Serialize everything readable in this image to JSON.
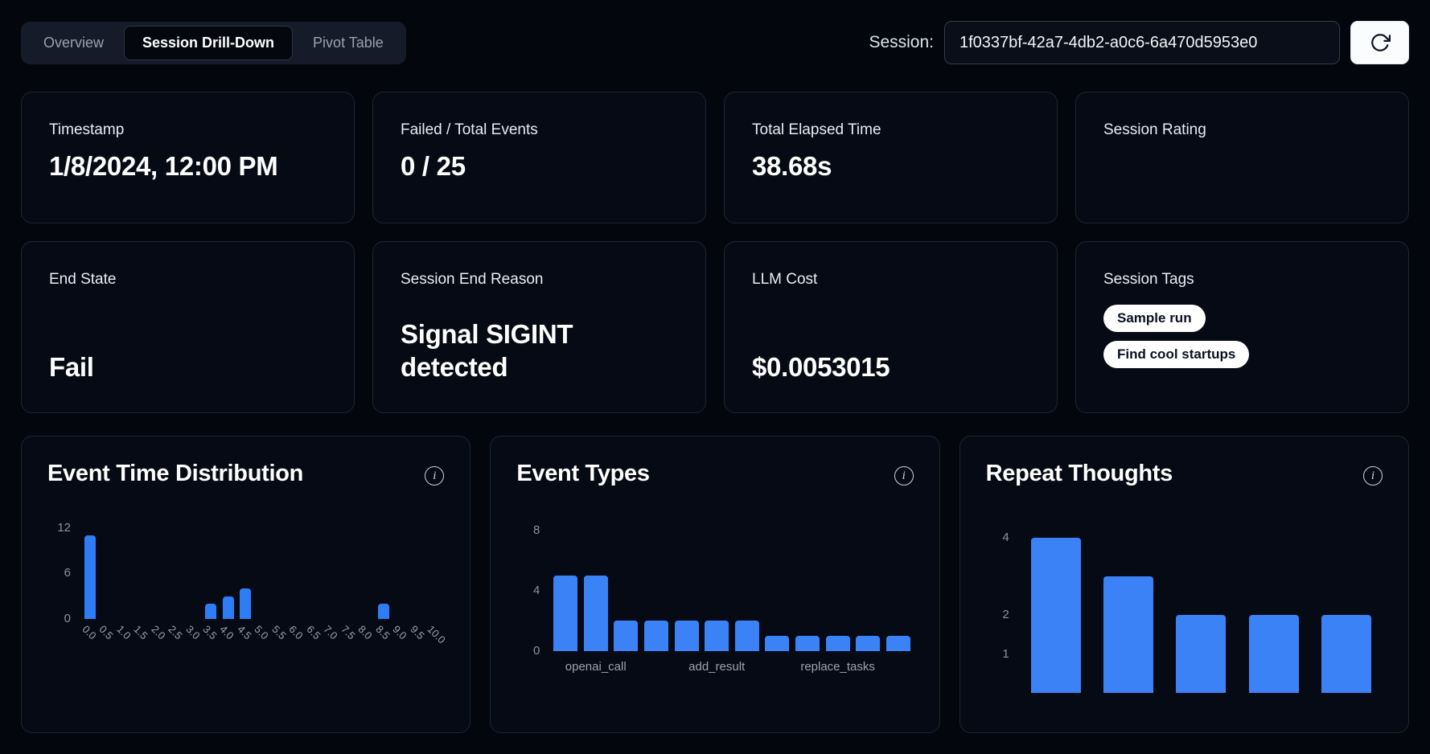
{
  "theme": {
    "background": "#04060d",
    "card_background": "#060a14",
    "card_border": "#1c2535",
    "accent_blue": "#3b82f6",
    "pill_background": "#ffffff"
  },
  "icons": {
    "info": "i",
    "refresh": "refresh-arrow"
  },
  "tabs": [
    {
      "label": "Overview",
      "active": false
    },
    {
      "label": "Session Drill-Down",
      "active": true
    },
    {
      "label": "Pivot Table",
      "active": false
    }
  ],
  "session_picker": {
    "label": "Session:",
    "value": "1f0337bf-42a7-4db2-a0c6-6a470d5953e0"
  },
  "stats": [
    {
      "title": "Timestamp",
      "value": "1/8/2024, 12:00 PM"
    },
    {
      "title": "Failed / Total Events",
      "value": "0 / 25"
    },
    {
      "title": "Total Elapsed Time",
      "value": "38.68s"
    },
    {
      "title": "Session Rating",
      "value": ""
    },
    {
      "title": "End State",
      "value": "Fail"
    },
    {
      "title": "Session End Reason",
      "value": "Signal SIGINT detected"
    },
    {
      "title": "LLM Cost",
      "value": "$0.0053015"
    },
    {
      "title": "Session Tags",
      "tags": [
        "Sample run",
        "Find cool startups"
      ]
    }
  ],
  "chart_data": [
    {
      "type": "bar",
      "title": "Event Time Distribution",
      "categories": [
        "0.0",
        "0.5",
        "1.0",
        "1.5",
        "2.0",
        "2.5",
        "3.0",
        "3.5",
        "4.0",
        "4.5",
        "5.0",
        "5.5",
        "6.0",
        "6.5",
        "7.0",
        "7.5",
        "8.0",
        "8.5",
        "9.0",
        "9.5",
        "10.0"
      ],
      "values": [
        11,
        0,
        0,
        0,
        0,
        0,
        0,
        2,
        3,
        4,
        0,
        0,
        0,
        0,
        0,
        0,
        0,
        2,
        0,
        0,
        0
      ],
      "yticks": [
        0,
        6,
        12
      ],
      "ylim": [
        0,
        12.5
      ],
      "grid": false,
      "legend": false,
      "color": "#2e7cf6"
    },
    {
      "type": "bar",
      "title": "Event Types",
      "categories": [
        "",
        "openai_call",
        "",
        "",
        "",
        "add_result",
        "",
        "",
        "",
        "replace_tasks",
        "",
        ""
      ],
      "values": [
        5,
        5,
        2,
        2,
        2,
        2,
        2,
        1,
        1,
        1,
        1,
        1
      ],
      "yticks": [
        0,
        4,
        8
      ],
      "ylim": [
        0,
        8.4
      ],
      "grid": false,
      "legend": false,
      "color": "#3b82f6"
    },
    {
      "type": "bar",
      "title": "Repeat Thoughts",
      "categories": [
        "",
        "",
        "",
        "",
        ""
      ],
      "values": [
        4,
        3,
        2,
        2,
        2
      ],
      "yticks": [
        1,
        2,
        4
      ],
      "ylim": [
        0,
        4.35
      ],
      "grid": false,
      "legend": false,
      "color": "#3b82f6"
    }
  ]
}
